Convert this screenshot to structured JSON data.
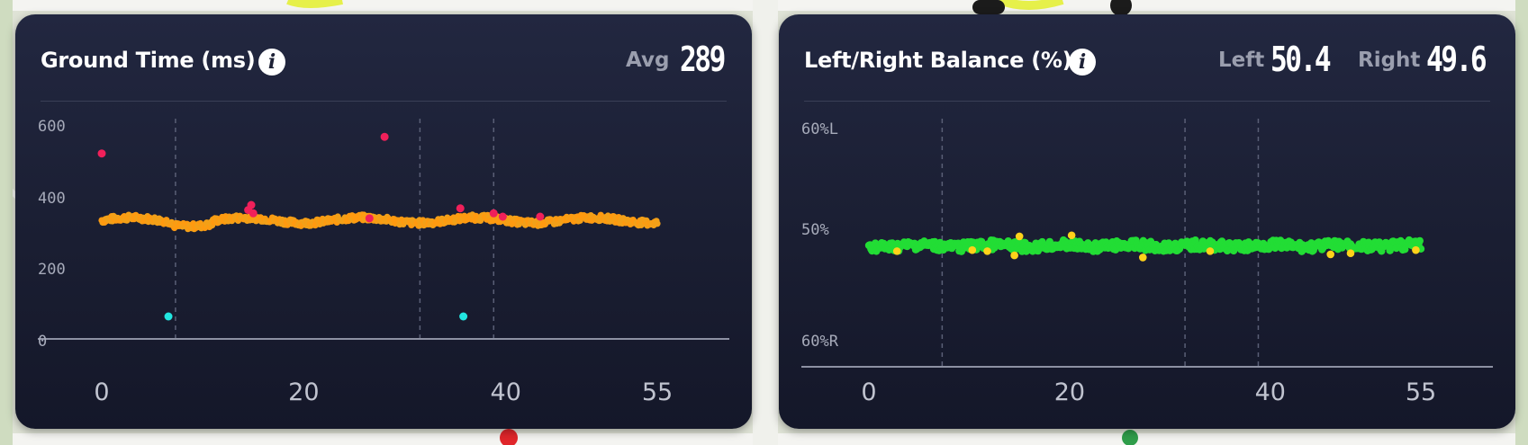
{
  "background": {
    "description_colors": {
      "map": "#dfe3d6",
      "roads": "#f5f5f2",
      "park": "#c9dcb4",
      "route": "#e6f04a"
    }
  },
  "colors": {
    "card_bg": "#1c2035",
    "orange": "#f3a018",
    "orange_light": "#ffb52e",
    "red": "#f0205a",
    "cyan": "#22e6e0",
    "green": "#22dd35",
    "yellow": "#ffd21a"
  },
  "left_panel": {
    "title": "Ground Time (ms)",
    "info_icon": "info-icon",
    "avg_label": "Avg",
    "avg_value": "289"
  },
  "right_panel": {
    "title": "Left/Right Balance (%)",
    "info_icon": "info-icon",
    "left_label": "Left",
    "left_value": "50.4",
    "right_label": "Right",
    "right_value": "49.6"
  },
  "chart_data": [
    {
      "type": "scatter",
      "title": "Ground Time (ms)",
      "x_ticks": [
        "0",
        "20",
        "40",
        "55"
      ],
      "y_ticks": [
        "600",
        "400",
        "200",
        "0"
      ],
      "xlim": [
        0,
        55
      ],
      "ylim": [
        0,
        600
      ],
      "lap_markers": [
        7.3,
        31.5,
        38.8
      ],
      "baseline": 289,
      "series": [
        {
          "color": "orange",
          "values_note": "dense cloud around 289",
          "points": []
        },
        {
          "color": "red",
          "points": [
            [
              0,
              490
            ],
            [
              14.5,
              320
            ],
            [
              14.8,
              335
            ],
            [
              15.0,
              310
            ],
            [
              28.0,
              540
            ],
            [
              26.5,
              295
            ],
            [
              35.5,
              325
            ],
            [
              38.8,
              310
            ],
            [
              39.7,
              300
            ],
            [
              43.4,
              300
            ]
          ]
        },
        {
          "color": "cyan",
          "points": [
            [
              6.6,
              0
            ],
            [
              35.8,
              0
            ]
          ]
        }
      ]
    },
    {
      "type": "scatter",
      "title": "Left/Right Balance (%)",
      "x_ticks": [
        "0",
        "20",
        "40",
        "55"
      ],
      "y_ticks": [
        "60%L",
        "50%",
        "60%R"
      ],
      "xlim": [
        0,
        55
      ],
      "ylim": [
        -10,
        10
      ],
      "lap_markers": [
        7.3,
        31.5,
        38.8
      ],
      "baseline": 50.4,
      "series": [
        {
          "color": "green",
          "points": []
        },
        {
          "color": "yellow",
          "points": [
            [
              2.8,
              0.5
            ],
            [
              10.3,
              0.4
            ],
            [
              11.8,
              0.5
            ],
            [
              14.5,
              0.9
            ],
            [
              15.0,
              -0.9
            ],
            [
              20.2,
              -1.0
            ],
            [
              27.3,
              1.1
            ],
            [
              34.0,
              0.5
            ],
            [
              46.0,
              0.8
            ],
            [
              48.0,
              0.7
            ],
            [
              54.5,
              0.4
            ]
          ]
        }
      ]
    }
  ]
}
